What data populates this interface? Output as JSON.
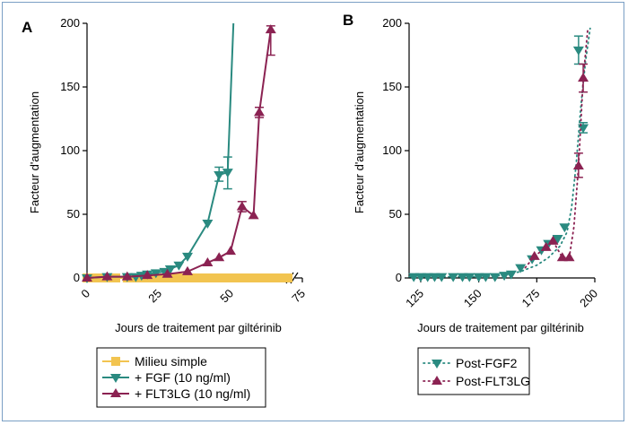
{
  "chart_data": [
    {
      "type": "line",
      "panel_label": "A",
      "ylabel": "Facteur d'augmentation",
      "xlabel": "Jours de traitement par giltérinib",
      "xlim": [
        0,
        75
      ],
      "ylim": [
        0,
        200
      ],
      "xticks": [
        "0",
        "25",
        "50",
        "75"
      ],
      "yticks": [
        "0",
        "50",
        "100",
        "150",
        "200"
      ],
      "axis_break": "x-end",
      "legend_position": "bottom-left-outside",
      "series": [
        {
          "name": "Milieu simple",
          "color": "#f2c450",
          "marker": "square",
          "x": [
            0,
            2,
            4,
            7,
            10,
            14,
            17,
            19,
            21,
            24,
            27,
            29,
            32,
            34,
            37,
            39,
            42,
            45,
            47,
            49,
            52,
            54,
            56,
            59,
            61,
            64,
            67,
            70
          ],
          "y": [
            0,
            0,
            0,
            0,
            0,
            0,
            0,
            0,
            0,
            0,
            0,
            0,
            0,
            0,
            0,
            0,
            0,
            0,
            0,
            0,
            0,
            0,
            0,
            0,
            0,
            0,
            0,
            0
          ]
        },
        {
          "name": "+ FGF (10 ng/ml)",
          "color": "#2a8a80",
          "marker": "triangle-down",
          "x": [
            0,
            7,
            14,
            17,
            19,
            21,
            24,
            27,
            29,
            32,
            35,
            42,
            46,
            49,
            51
          ],
          "y": [
            0,
            1,
            1,
            1,
            2,
            3,
            4,
            5,
            7,
            10,
            17,
            43,
            81,
            83,
            200
          ],
          "error_low": [
            null,
            null,
            null,
            null,
            null,
            null,
            null,
            null,
            null,
            null,
            null,
            null,
            76,
            70,
            null
          ],
          "error_high": [
            null,
            null,
            null,
            null,
            null,
            null,
            null,
            null,
            null,
            null,
            null,
            null,
            87,
            95,
            null
          ]
        },
        {
          "name": "+ FLT3LG (10 ng/ml)",
          "color": "#8b2252",
          "marker": "triangle-up",
          "x": [
            0,
            7,
            14,
            21,
            28,
            35,
            42,
            46,
            50,
            54,
            58,
            60,
            64
          ],
          "y": [
            0,
            1,
            1,
            2,
            3,
            5,
            12,
            16,
            21,
            56,
            49,
            130,
            195
          ],
          "error_low": [
            null,
            null,
            null,
            null,
            null,
            null,
            null,
            null,
            null,
            52,
            null,
            126,
            175
          ],
          "error_high": [
            null,
            null,
            null,
            null,
            null,
            null,
            null,
            null,
            null,
            60,
            null,
            134,
            198
          ]
        }
      ]
    },
    {
      "type": "scatter",
      "panel_label": "B",
      "ylabel": "Facteur d'augmentation",
      "xlabel": "Jours de traitement par giltérinib",
      "xlim": [
        120,
        200
      ],
      "ylim": [
        0,
        200
      ],
      "xticks": [
        "125",
        "150",
        "175",
        "200"
      ],
      "yticks": [
        "0",
        "50",
        "100",
        "150",
        "200"
      ],
      "legend_position": "bottom-left-outside",
      "series": [
        {
          "name": "Post-FGF2",
          "color": "#2a8a80",
          "marker": "triangle-down",
          "line_style": "dotted",
          "x": [
            122,
            125,
            128,
            131,
            134,
            139,
            143,
            146,
            150,
            153,
            157,
            161,
            164,
            168,
            173,
            177,
            180,
            184,
            187,
            193,
            195
          ],
          "y": [
            1,
            1,
            1,
            1,
            1,
            1,
            1,
            1,
            1,
            1,
            1,
            2,
            3,
            8,
            15,
            22,
            27,
            31,
            40,
            179,
            118
          ],
          "error_low": [
            null,
            null,
            null,
            null,
            null,
            null,
            null,
            null,
            null,
            null,
            null,
            null,
            null,
            null,
            null,
            null,
            null,
            null,
            null,
            168,
            114
          ],
          "error_high": [
            null,
            null,
            null,
            null,
            null,
            null,
            null,
            null,
            null,
            null,
            null,
            null,
            null,
            null,
            null,
            null,
            null,
            null,
            null,
            190,
            122
          ],
          "fit_x": [
            120,
            135,
            150,
            160,
            168,
            175,
            180,
            185,
            188,
            190,
            192,
            194,
            196,
            198
          ],
          "fit_y": [
            1,
            1,
            1,
            2,
            5,
            10,
            16,
            25,
            36,
            55,
            90,
            135,
            170,
            196
          ]
        },
        {
          "name": "Post-FLT3LG",
          "color": "#8b2252",
          "marker": "triangle-up",
          "line_style": "dotted",
          "x": [
            174,
            179,
            182,
            186,
            189,
            193,
            195
          ],
          "y": [
            17,
            24,
            29,
            16,
            16,
            88,
            157
          ],
          "error_low": [
            null,
            null,
            null,
            null,
            null,
            79,
            146
          ],
          "error_high": [
            null,
            null,
            null,
            null,
            null,
            98,
            168
          ],
          "fit_x": [
            170,
            174,
            179,
            182,
            186,
            189,
            191,
            193,
            195,
            197
          ],
          "fit_y": [
            8,
            17,
            24,
            29,
            16,
            16,
            40,
            88,
            157,
            196
          ]
        }
      ]
    }
  ]
}
